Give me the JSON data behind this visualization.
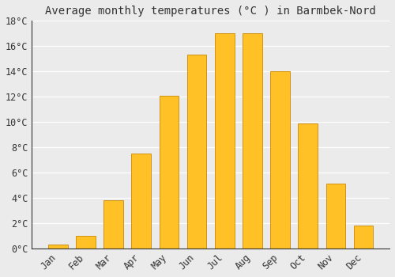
{
  "title": "Average monthly temperatures (°C ) in Barmbek-Nord",
  "months": [
    "Jan",
    "Feb",
    "Mar",
    "Apr",
    "May",
    "Jun",
    "Jul",
    "Aug",
    "Sep",
    "Oct",
    "Nov",
    "Dec"
  ],
  "values": [
    0.3,
    1.0,
    3.8,
    7.5,
    12.1,
    15.3,
    17.0,
    17.0,
    14.0,
    9.9,
    5.1,
    1.8
  ],
  "bar_color": "#FFC125",
  "bar_edge_color": "#CC8800",
  "background_color": "#EBEBEB",
  "grid_color": "#FFFFFF",
  "text_color": "#333333",
  "ylim": [
    0,
    18
  ],
  "yticks": [
    0,
    2,
    4,
    6,
    8,
    10,
    12,
    14,
    16,
    18
  ],
  "ytick_labels": [
    "0°C",
    "2°C",
    "4°C",
    "6°C",
    "8°C",
    "10°C",
    "12°C",
    "14°C",
    "16°C",
    "18°C"
  ],
  "title_fontsize": 10,
  "tick_fontsize": 8.5,
  "figsize": [
    5.0,
    3.5
  ],
  "dpi": 100,
  "bar_width": 0.7
}
